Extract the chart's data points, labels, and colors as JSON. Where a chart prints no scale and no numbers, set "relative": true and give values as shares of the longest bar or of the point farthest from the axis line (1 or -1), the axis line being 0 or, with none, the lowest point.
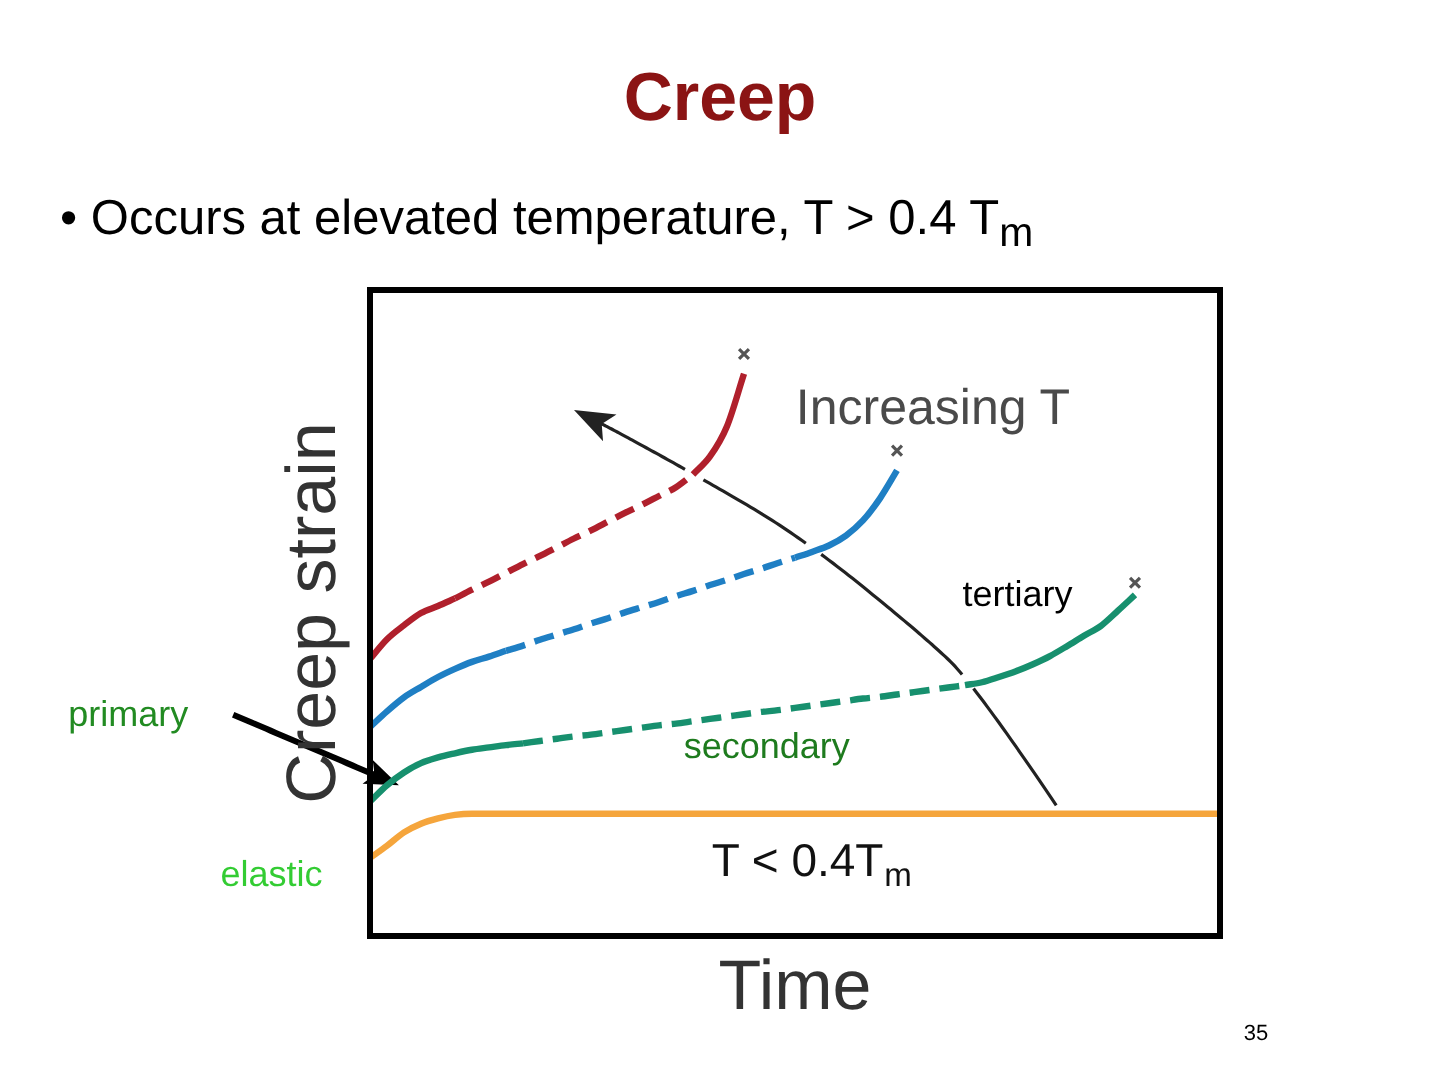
{
  "chart_data": {
    "type": "line",
    "title": "Creep",
    "subtitle": "• Occurs at elevated temperature, T > 0.4 T$_{m}$",
    "xlabel": "Time",
    "ylabel": "Creep strain",
    "annotations": [
      "Increasing T",
      "tertiary",
      "primary",
      "secondary",
      "elastic",
      "T < 0.4T$_{m}$",
      "35"
    ],
    "relative": true,
    "tick_labels": false,
    "grid": false,
    "legend": false,
    "marker": "none",
    "line_style": "solid",
    "categories": [
      null,
      null,
      null,
      null,
      null,
      null,
      null,
      null,
      null,
      null,
      null,
      null,
      null,
      null,
      null,
      null,
      null,
      null,
      null,
      null,
      null,
      null,
      null,
      null,
      null,
      null,
      null,
      null,
      null,
      null,
      null,
      null,
      null,
      null,
      null,
      null,
      null,
      null,
      null,
      null,
      null,
      null,
      null,
      null,
      null,
      null,
      null,
      null,
      null,
      null,
      null
    ],
    "series": [
      {
        "color": "#b0202c",
        "values": [
          0.476,
          0.51,
          0.534,
          0.555,
          0.567,
          0.58,
          null,
          null,
          null,
          null,
          null,
          null,
          null,
          null,
          null,
          null,
          null,
          null,
          null,
          null,
          null,
          null,
          null,
          null,
          null,
          null,
          null,
          null,
          null,
          null,
          null,
          null,
          null,
          null,
          null,
          null,
          null,
          null,
          null,
          null,
          null,
          null,
          null,
          null,
          null,
          null,
          null,
          null,
          null,
          null,
          null
        ]
      },
      {
        "color": "#b0202c",
        "line_style": "dashed",
        "values": [
          null,
          null,
          null,
          null,
          null,
          0.58,
          0.595,
          0.609,
          0.624,
          0.639,
          0.653,
          0.668,
          0.683,
          0.697,
          0.712,
          0.727,
          0.741,
          0.756,
          0.771,
          0.793,
          null,
          null,
          null,
          null,
          null,
          null,
          null,
          null,
          null,
          null,
          null,
          null,
          null,
          null,
          null,
          null,
          null,
          null,
          null,
          null,
          null,
          null,
          null,
          null,
          null,
          null,
          null,
          null,
          null,
          null,
          null
        ]
      },
      {
        "color": "#b0202c",
        "values": [
          null,
          null,
          null,
          null,
          null,
          null,
          null,
          null,
          null,
          null,
          null,
          null,
          null,
          null,
          null,
          null,
          null,
          null,
          null,
          0.793,
          0.824,
          0.876,
          0.966,
          null,
          null,
          null,
          null,
          null,
          null,
          null,
          null,
          null,
          null,
          null,
          null,
          null,
          null,
          null,
          null,
          null,
          null,
          null,
          null,
          null,
          null,
          null,
          null,
          null,
          null,
          null,
          null
        ]
      },
      {
        "color": "#1f7fc4",
        "values": [
          0.359,
          0.386,
          0.41,
          0.428,
          0.445,
          0.459,
          0.471,
          0.48,
          0.49,
          null,
          null,
          null,
          null,
          null,
          null,
          null,
          null,
          null,
          null,
          null,
          null,
          null,
          null,
          null,
          null,
          null,
          null,
          null,
          null,
          null,
          null,
          null,
          null,
          null,
          null,
          null,
          null,
          null,
          null,
          null,
          null,
          null,
          null,
          null,
          null,
          null,
          null,
          null,
          null,
          null,
          null
        ]
      },
      {
        "color": "#1f7fc4",
        "line_style": "dashed",
        "values": [
          null,
          null,
          null,
          null,
          null,
          null,
          null,
          null,
          0.49,
          0.499,
          0.509,
          0.518,
          0.527,
          0.537,
          0.546,
          0.556,
          0.565,
          0.574,
          0.584,
          0.593,
          0.603,
          0.612,
          0.622,
          0.631,
          0.641,
          0.65,
          null,
          null,
          null,
          null,
          null,
          null,
          null,
          null,
          null,
          null,
          null,
          null,
          null,
          null,
          null,
          null,
          null,
          null,
          null,
          null,
          null,
          null,
          null,
          null,
          null
        ]
      },
      {
        "color": "#1f7fc4",
        "values": [
          null,
          null,
          null,
          null,
          null,
          null,
          null,
          null,
          null,
          null,
          null,
          null,
          null,
          null,
          null,
          null,
          null,
          null,
          null,
          null,
          null,
          null,
          null,
          null,
          null,
          0.65,
          0.66,
          0.671,
          0.688,
          0.714,
          0.752,
          0.8,
          null,
          null,
          null,
          null,
          null,
          null,
          null,
          null,
          null,
          null,
          null,
          null,
          null,
          null,
          null,
          null,
          null,
          null,
          null
        ]
      },
      {
        "color": "#17906e",
        "values": [
          0.231,
          0.259,
          0.281,
          0.297,
          0.307,
          0.314,
          0.32,
          0.324,
          0.328,
          0.331,
          null,
          null,
          null,
          null,
          null,
          null,
          null,
          null,
          null,
          null,
          null,
          null,
          null,
          null,
          null,
          null,
          null,
          null,
          null,
          null,
          null,
          null,
          null,
          null,
          null,
          null,
          null,
          null,
          null,
          null,
          null,
          null,
          null,
          null,
          null,
          null,
          null,
          null,
          null,
          null,
          null
        ]
      },
      {
        "color": "#17906e",
        "line_style": "dashed",
        "values": [
          null,
          null,
          null,
          null,
          null,
          null,
          null,
          null,
          null,
          0.331,
          0.335,
          0.339,
          0.343,
          0.346,
          0.35,
          0.354,
          0.358,
          0.362,
          0.365,
          0.369,
          0.373,
          0.377,
          0.381,
          0.385,
          0.388,
          0.392,
          0.396,
          0.4,
          0.404,
          0.408,
          0.411,
          0.415,
          0.419,
          0.423,
          0.427,
          0.431,
          null,
          null,
          null,
          null,
          null,
          null,
          null,
          null,
          null,
          null,
          null,
          null,
          null,
          null,
          null
        ]
      },
      {
        "color": "#17906e",
        "values": [
          null,
          null,
          null,
          null,
          null,
          null,
          null,
          null,
          null,
          null,
          null,
          null,
          null,
          null,
          null,
          null,
          null,
          null,
          null,
          null,
          null,
          null,
          null,
          null,
          null,
          null,
          null,
          null,
          null,
          null,
          null,
          null,
          null,
          null,
          null,
          0.431,
          0.436,
          0.445,
          0.455,
          0.467,
          0.481,
          0.498,
          0.516,
          0.533,
          0.559,
          0.586,
          null,
          null,
          null,
          null,
          null
        ]
      },
      {
        "color": "#f5a53c",
        "values": [
          0.134,
          0.155,
          0.178,
          0.193,
          0.202,
          0.208,
          0.21,
          0.21,
          0.21,
          0.21,
          0.21,
          0.21,
          0.21,
          0.21,
          0.21,
          0.21,
          0.21,
          0.21,
          0.21,
          0.21,
          0.21,
          0.21,
          0.21,
          0.21,
          0.21,
          0.21,
          0.21,
          0.21,
          0.21,
          0.21,
          0.21,
          0.21,
          0.21,
          0.21,
          0.21,
          0.21,
          0.21,
          0.21,
          0.21,
          0.21,
          0.21,
          0.21,
          0.21,
          0.21,
          0.21,
          0.21,
          0.21,
          0.21,
          0.21,
          0.21,
          0.21
        ]
      },
      {
        "marker": "cross",
        "color": "#555555",
        "values": [
          null,
          null,
          null,
          null,
          null,
          null,
          null,
          null,
          null,
          null,
          null,
          null,
          null,
          null,
          null,
          null,
          null,
          null,
          null,
          null,
          null,
          null,
          1,
          null,
          null,
          null,
          null,
          null,
          null,
          null,
          null,
          0.834,
          null,
          null,
          null,
          null,
          null,
          null,
          null,
          null,
          null,
          null,
          null,
          null,
          null,
          0.607,
          null,
          null,
          null,
          null,
          null
        ]
      }
    ]
  }
}
